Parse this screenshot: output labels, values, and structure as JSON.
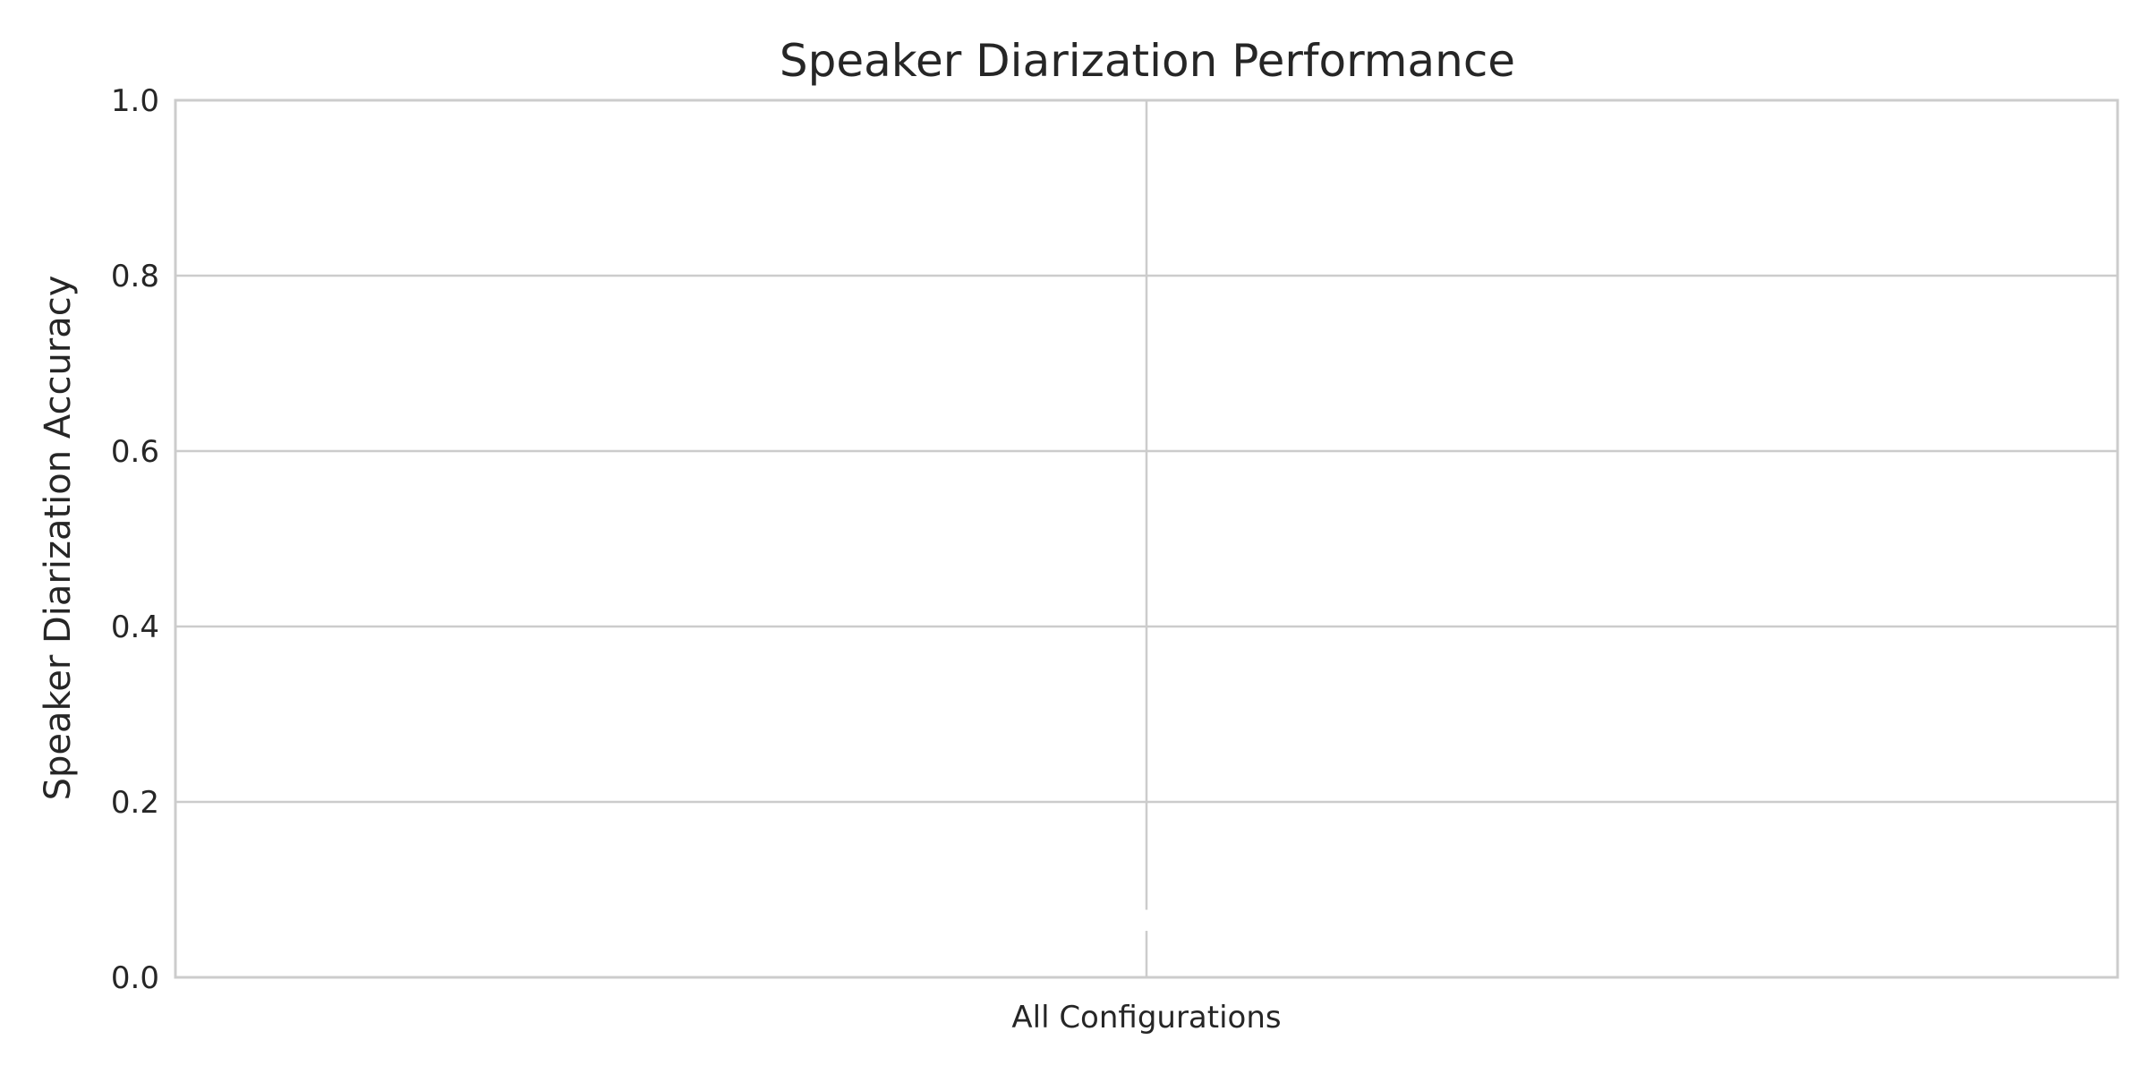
{
  "chart_data": {
    "type": "bar",
    "title": "Speaker Diarization Performance",
    "xlabel": "",
    "ylabel": "Speaker Diarization Accuracy",
    "categories": [
      "All Configurations"
    ],
    "values": [
      0.0
    ],
    "error_bars": [
      {
        "low": 0.053,
        "high": 0.077
      }
    ],
    "ylim": [
      0,
      1
    ],
    "yticks": [
      "0.0",
      "0.2",
      "0.4",
      "0.6",
      "0.8",
      "1.0"
    ],
    "grid": true,
    "legend": "none",
    "colors": {
      "grid": "#cccccc",
      "text": "#262626",
      "background": "#ffffff"
    }
  }
}
